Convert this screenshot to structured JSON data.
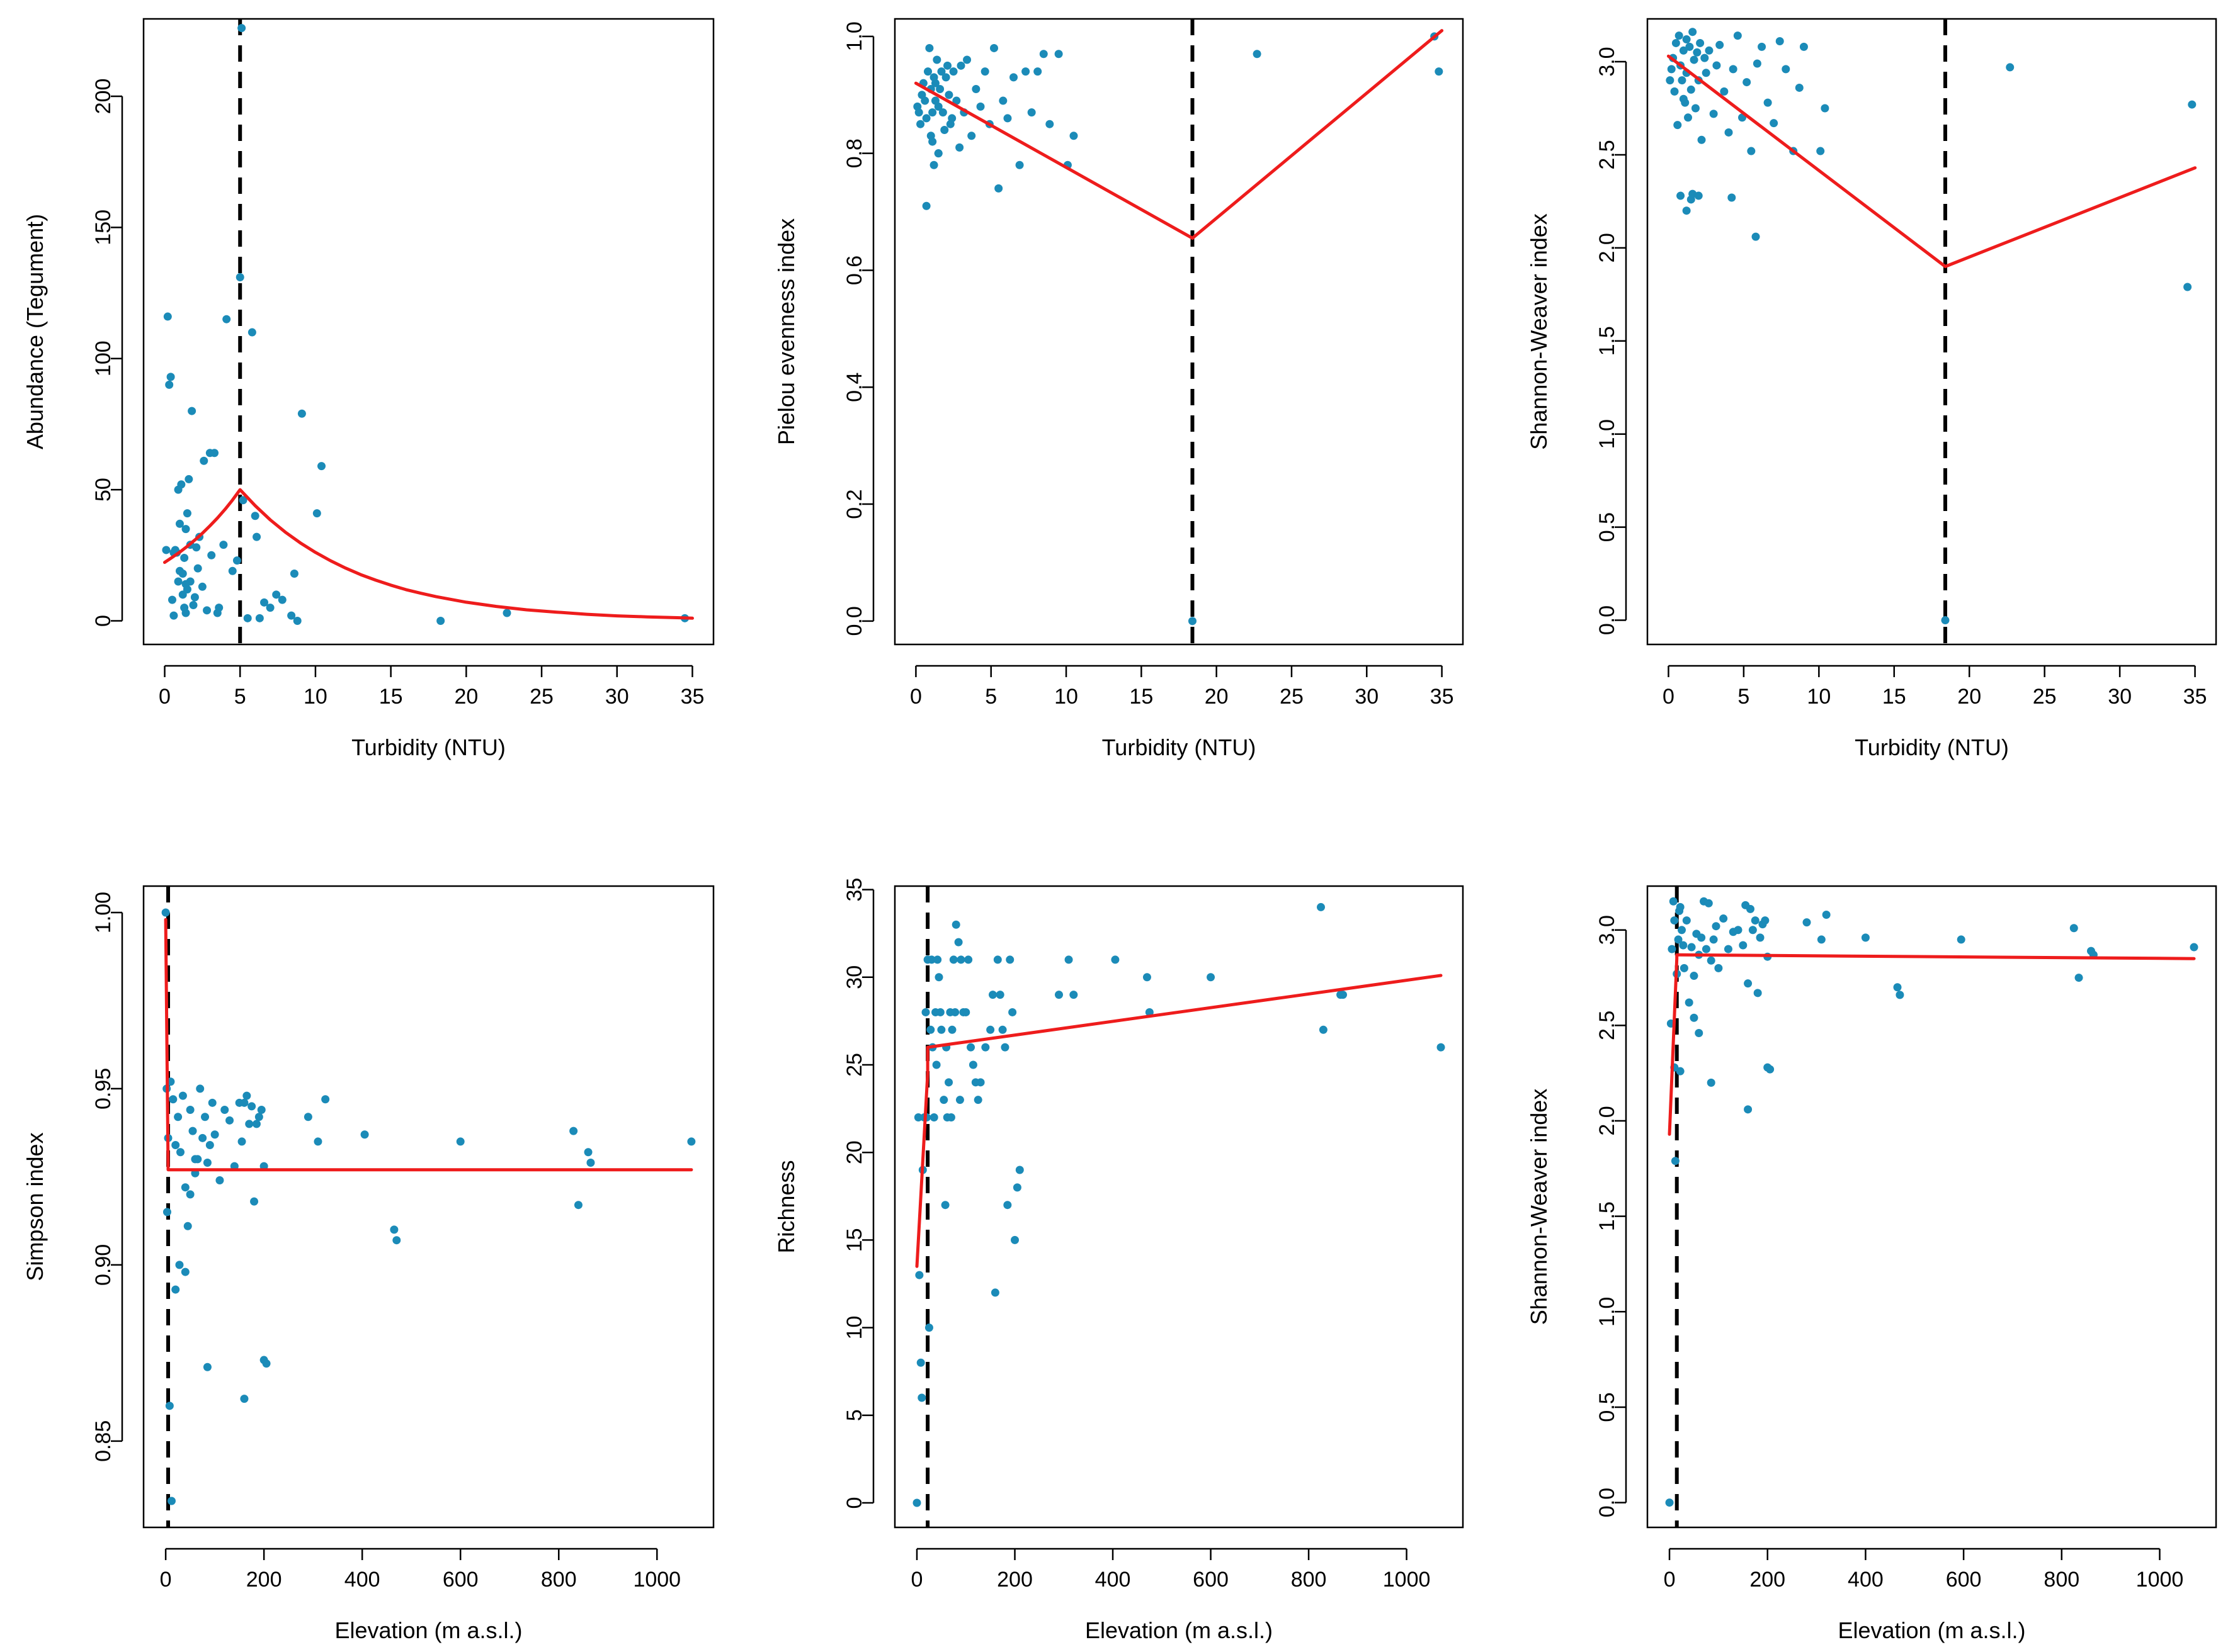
{
  "figure": {
    "colors": {
      "points": "#1b8bb8",
      "fit_line": "#ee1c1c",
      "breakpoint_line": "#000000",
      "frame": "#000000",
      "background": "#ffffff"
    }
  },
  "chart_data": [
    {
      "type": "scatter",
      "panel": "top-left",
      "xlabel": "Turbidity (NTU)",
      "ylabel": "Abundance (Tegument)",
      "xlim": [
        -1.4,
        36.4
      ],
      "ylim": [
        -9,
        229.5
      ],
      "xticks": [
        0,
        5,
        10,
        15,
        20,
        25,
        30,
        35
      ],
      "yticks": [
        0,
        50,
        100,
        150,
        200
      ],
      "breakpoint": 5.0,
      "fit": {
        "kind": "piecewise-exponential",
        "x": [
          0,
          0.5,
          1,
          1.5,
          2,
          2.5,
          3,
          3.5,
          4,
          4.5,
          5,
          6,
          7,
          8,
          9,
          10,
          11,
          12,
          13,
          14,
          15,
          16,
          17,
          18,
          20,
          22,
          24,
          26,
          28,
          30,
          32,
          34,
          35
        ],
        "y": [
          22.3,
          24.2,
          26.2,
          28.4,
          30.8,
          33.4,
          36.2,
          39.2,
          42.5,
          46.1,
          50.0,
          43.9,
          38.5,
          33.8,
          29.7,
          26.1,
          22.9,
          20.1,
          17.6,
          15.5,
          13.6,
          11.9,
          10.5,
          9.2,
          7.1,
          5.5,
          4.2,
          3.3,
          2.5,
          1.9,
          1.5,
          1.2,
          1.0
        ]
      },
      "points": {
        "x": [
          0.1,
          0.2,
          0.3,
          0.4,
          0.5,
          0.6,
          0.7,
          0.8,
          0.9,
          1.0,
          1.0,
          1.1,
          1.2,
          1.2,
          1.3,
          1.3,
          1.4,
          1.4,
          1.5,
          1.5,
          1.6,
          1.7,
          1.7,
          1.8,
          1.9,
          2.0,
          2.1,
          2.2,
          2.3,
          2.5,
          2.6,
          2.8,
          3.0,
          3.1,
          3.3,
          3.5,
          3.6,
          3.9,
          4.1,
          4.5,
          4.8,
          5.0,
          5.1,
          5.2,
          5.5,
          5.8,
          6.0,
          6.1,
          6.3,
          6.6,
          7.0,
          7.4,
          7.8,
          8.4,
          8.6,
          8.8,
          9.1,
          10.1,
          10.4,
          0.6,
          0.9,
          1.4,
          18.3,
          22.7,
          34.5
        ],
        "y": [
          27,
          116,
          90,
          93,
          8,
          26,
          27,
          26,
          50,
          37,
          19,
          52,
          18,
          10,
          5,
          24,
          3,
          35,
          12,
          41,
          54,
          15,
          29,
          80,
          6,
          9,
          28,
          20,
          32,
          13,
          61,
          4,
          64,
          25,
          64,
          3,
          5,
          29,
          115,
          19,
          23,
          131,
          226,
          46,
          1,
          110,
          40,
          32,
          1,
          7,
          5,
          10,
          8,
          2,
          18,
          0,
          79,
          41,
          59,
          2,
          15,
          14,
          0,
          3,
          1
        ]
      }
    },
    {
      "type": "scatter",
      "panel": "top-middle",
      "xlabel": "Turbidity (NTU)",
      "ylabel": "Pielou evenness index",
      "xlim": [
        -1.4,
        36.4
      ],
      "ylim": [
        -0.04,
        1.03
      ],
      "xticks": [
        0,
        5,
        10,
        15,
        20,
        25,
        30,
        35
      ],
      "yticks": [
        0.0,
        0.2,
        0.4,
        0.6,
        0.8,
        1.0
      ],
      "yticklabels": [
        "0.0",
        "0.2",
        "0.4",
        "0.6",
        "0.8",
        "1.0"
      ],
      "breakpoint": 18.4,
      "fit": {
        "kind": "piecewise-linear",
        "x": [
          0,
          18.4,
          35
        ],
        "y": [
          0.92,
          0.655,
          1.01
        ]
      },
      "points": {
        "x": [
          0.1,
          0.2,
          0.3,
          0.4,
          0.5,
          0.6,
          0.7,
          0.8,
          0.9,
          1.0,
          1.0,
          1.1,
          1.2,
          1.2,
          1.3,
          1.3,
          1.4,
          1.5,
          1.5,
          1.6,
          1.7,
          1.8,
          1.9,
          2.0,
          2.1,
          2.2,
          2.4,
          2.5,
          2.7,
          2.9,
          3.0,
          3.2,
          3.4,
          3.7,
          4.0,
          4.3,
          4.6,
          4.9,
          5.2,
          5.5,
          5.8,
          6.1,
          6.5,
          6.9,
          7.3,
          7.7,
          8.1,
          8.5,
          8.9,
          9.5,
          10.1,
          10.5,
          0.7,
          1.1,
          1.5,
          2.3,
          18.4,
          22.7,
          34.5,
          34.8
        ],
        "y": [
          0.88,
          0.87,
          0.85,
          0.9,
          0.92,
          0.89,
          0.86,
          0.94,
          0.98,
          0.91,
          0.83,
          0.87,
          0.93,
          0.78,
          0.89,
          0.92,
          0.96,
          0.88,
          0.8,
          0.91,
          0.94,
          0.87,
          0.84,
          0.93,
          0.95,
          0.9,
          0.86,
          0.94,
          0.89,
          0.81,
          0.95,
          0.87,
          0.96,
          0.83,
          0.91,
          0.88,
          0.94,
          0.85,
          0.98,
          0.74,
          0.89,
          0.86,
          0.93,
          0.78,
          0.94,
          0.87,
          0.94,
          0.97,
          0.85,
          0.97,
          0.78,
          0.83,
          0.71,
          0.82,
          0.8,
          0.85,
          0.0,
          0.97,
          1.0,
          0.94
        ]
      }
    },
    {
      "type": "scatter",
      "panel": "top-right",
      "xlabel": "Turbidity (NTU)",
      "ylabel": "Shannon-Weaver index",
      "xlim": [
        -1.4,
        36.4
      ],
      "ylim": [
        -0.13,
        3.23
      ],
      "xticks": [
        0,
        5,
        10,
        15,
        20,
        25,
        30,
        35
      ],
      "yticks": [
        0.0,
        0.5,
        1.0,
        1.5,
        2.0,
        2.5,
        3.0
      ],
      "yticklabels": [
        "0.0",
        "0.5",
        "1.0",
        "1.5",
        "2.0",
        "2.5",
        "3.0"
      ],
      "breakpoint": 18.4,
      "fit": {
        "kind": "piecewise-linear",
        "x": [
          0,
          18.4,
          35
        ],
        "y": [
          3.03,
          1.9,
          2.43
        ]
      },
      "points": {
        "x": [
          0.1,
          0.2,
          0.3,
          0.4,
          0.5,
          0.6,
          0.7,
          0.8,
          0.9,
          1.0,
          1.0,
          1.1,
          1.2,
          1.2,
          1.3,
          1.4,
          1.5,
          1.5,
          1.6,
          1.7,
          1.8,
          1.9,
          2.0,
          2.1,
          2.2,
          2.4,
          2.5,
          2.7,
          3.0,
          3.2,
          3.4,
          3.7,
          4.0,
          4.3,
          4.6,
          4.9,
          5.2,
          5.5,
          5.9,
          6.2,
          6.6,
          7.0,
          7.4,
          7.8,
          8.3,
          8.7,
          9.0,
          10.1,
          10.4,
          0.8,
          1.2,
          1.6,
          2.0,
          4.2,
          5.8,
          18.4,
          22.7,
          34.5,
          34.8
        ],
        "y": [
          2.9,
          2.96,
          3.02,
          2.84,
          3.1,
          2.66,
          3.14,
          2.98,
          2.9,
          2.8,
          3.06,
          2.78,
          3.12,
          2.94,
          2.7,
          3.08,
          2.26,
          2.85,
          3.16,
          3.01,
          2.75,
          3.05,
          2.9,
          3.1,
          2.58,
          3.02,
          2.94,
          3.06,
          2.72,
          2.98,
          3.09,
          2.84,
          2.62,
          2.96,
          3.14,
          2.7,
          2.89,
          2.52,
          2.99,
          3.08,
          2.78,
          2.67,
          3.11,
          2.96,
          2.52,
          2.86,
          3.08,
          2.52,
          2.75,
          2.28,
          2.2,
          2.29,
          2.28,
          2.27,
          2.06,
          0.0,
          2.97,
          1.79,
          2.77
        ]
      }
    },
    {
      "type": "scatter",
      "panel": "bottom-left",
      "xlabel": "Elevation (m a.s.l.)",
      "ylabel": "Simpson index",
      "xlim": [
        -45,
        1115
      ],
      "ylim": [
        0.8255,
        1.0075
      ],
      "xticks": [
        0,
        200,
        400,
        600,
        800,
        1000
      ],
      "yticks": [
        0.85,
        0.9,
        0.95,
        1.0
      ],
      "yticklabels": [
        "0.85",
        "0.90",
        "0.95",
        "1.00"
      ],
      "breakpoint": 5,
      "fit": {
        "kind": "piecewise",
        "x": [
          0,
          5,
          1070
        ],
        "y": [
          0.998,
          0.927,
          0.927
        ]
      },
      "points": {
        "x": [
          0,
          2,
          3,
          5,
          8,
          10,
          15,
          20,
          25,
          30,
          35,
          40,
          45,
          50,
          55,
          60,
          65,
          70,
          75,
          80,
          85,
          90,
          95,
          100,
          110,
          120,
          130,
          140,
          150,
          155,
          160,
          165,
          170,
          175,
          180,
          185,
          190,
          195,
          200,
          12,
          20,
          28,
          40,
          50,
          60,
          85,
          160,
          200,
          205,
          290,
          310,
          325,
          405,
          465,
          470,
          600,
          830,
          840,
          860,
          865,
          1070
        ],
        "y": [
          1.0,
          0.95,
          0.915,
          0.936,
          0.86,
          0.952,
          0.947,
          0.934,
          0.942,
          0.932,
          0.948,
          0.922,
          0.911,
          0.944,
          0.938,
          0.926,
          0.93,
          0.95,
          0.936,
          0.942,
          0.929,
          0.934,
          0.946,
          0.937,
          0.924,
          0.944,
          0.941,
          0.928,
          0.946,
          0.935,
          0.946,
          0.948,
          0.94,
          0.945,
          0.918,
          0.94,
          0.942,
          0.944,
          0.928,
          0.833,
          0.893,
          0.9,
          0.898,
          0.92,
          0.93,
          0.871,
          0.862,
          0.873,
          0.872,
          0.942,
          0.935,
          0.947,
          0.937,
          0.91,
          0.907,
          0.935,
          0.938,
          0.917,
          0.932,
          0.929,
          0.935
        ]
      }
    },
    {
      "type": "scatter",
      "panel": "bottom-middle",
      "xlabel": "Elevation (m a.s.l.)",
      "ylabel": "Richness",
      "xlim": [
        -45,
        1115
      ],
      "ylim": [
        -1.4,
        35.2
      ],
      "xticks": [
        0,
        200,
        400,
        600,
        800,
        1000
      ],
      "yticks": [
        0,
        5,
        10,
        15,
        20,
        25,
        30,
        35
      ],
      "breakpoint": 22,
      "fit": {
        "kind": "piecewise-linear",
        "x": [
          0,
          22,
          22,
          1070
        ],
        "y": [
          13.5,
          24.5,
          26,
          30.1
        ]
      },
      "points": {
        "x": [
          0,
          3,
          5,
          8,
          10,
          12,
          15,
          18,
          20,
          22,
          25,
          28,
          30,
          32,
          35,
          38,
          40,
          42,
          45,
          48,
          50,
          55,
          58,
          60,
          62,
          65,
          68,
          70,
          72,
          75,
          78,
          80,
          85,
          88,
          90,
          95,
          100,
          105,
          110,
          115,
          120,
          125,
          130,
          140,
          150,
          155,
          160,
          165,
          170,
          175,
          180,
          185,
          190,
          195,
          200,
          205,
          210,
          290,
          310,
          320,
          405,
          470,
          475,
          600,
          825,
          830,
          865,
          870,
          1070
        ],
        "y": [
          0,
          22,
          13,
          8,
          6,
          19,
          22,
          28,
          22,
          31,
          10,
          27,
          31,
          26,
          22,
          28,
          25,
          31,
          30,
          28,
          27,
          23,
          17,
          26,
          22,
          24,
          28,
          22,
          27,
          31,
          28,
          33,
          32,
          23,
          31,
          28,
          28,
          31,
          26,
          25,
          24,
          23,
          24,
          26,
          27,
          29,
          12,
          31,
          29,
          27,
          26,
          17,
          31,
          28,
          15,
          18,
          19,
          29,
          31,
          29,
          31,
          30,
          28,
          30,
          34,
          27,
          29,
          29,
          26
        ]
      }
    },
    {
      "type": "scatter",
      "panel": "bottom-right",
      "xlabel": "Elevation (m a.s.l.)",
      "ylabel": "Shannon-Weaver index",
      "xlim": [
        -45,
        1115
      ],
      "ylim": [
        -0.13,
        3.23
      ],
      "xticks": [
        0,
        200,
        400,
        600,
        800,
        1000
      ],
      "yticks": [
        0.0,
        0.5,
        1.0,
        1.5,
        2.0,
        2.5,
        3.0
      ],
      "yticklabels": [
        "0.0",
        "0.5",
        "1.0",
        "1.5",
        "2.0",
        "2.5",
        "3.0"
      ],
      "breakpoint": 15,
      "fit": {
        "kind": "piecewise",
        "x": [
          0,
          15,
          15,
          1070
        ],
        "y": [
          1.93,
          2.85,
          2.87,
          2.85
        ]
      },
      "points": {
        "x": [
          0,
          3,
          5,
          8,
          10,
          12,
          15,
          18,
          20,
          22,
          25,
          28,
          30,
          35,
          40,
          45,
          50,
          55,
          60,
          65,
          70,
          75,
          80,
          85,
          90,
          95,
          100,
          110,
          120,
          130,
          140,
          150,
          155,
          160,
          165,
          170,
          175,
          180,
          185,
          190,
          195,
          200,
          10,
          22,
          50,
          60,
          85,
          160,
          200,
          205,
          280,
          310,
          320,
          400,
          465,
          470,
          595,
          825,
          835,
          860,
          865,
          1070
        ],
        "y": [
          0.0,
          2.51,
          2.9,
          3.15,
          3.05,
          1.79,
          2.77,
          2.95,
          3.1,
          3.12,
          3.0,
          2.92,
          2.8,
          3.05,
          2.62,
          2.91,
          2.76,
          2.98,
          2.87,
          2.96,
          3.15,
          2.9,
          3.14,
          2.84,
          2.95,
          3.02,
          2.8,
          3.06,
          2.9,
          2.99,
          3.0,
          2.92,
          3.13,
          2.72,
          3.11,
          3.0,
          3.05,
          2.67,
          2.96,
          3.03,
          3.05,
          2.86,
          2.28,
          2.26,
          2.54,
          2.46,
          2.2,
          2.06,
          2.28,
          2.27,
          3.04,
          2.95,
          3.08,
          2.96,
          2.7,
          2.66,
          2.95,
          3.01,
          2.75,
          2.89,
          2.87,
          2.91
        ]
      }
    }
  ]
}
